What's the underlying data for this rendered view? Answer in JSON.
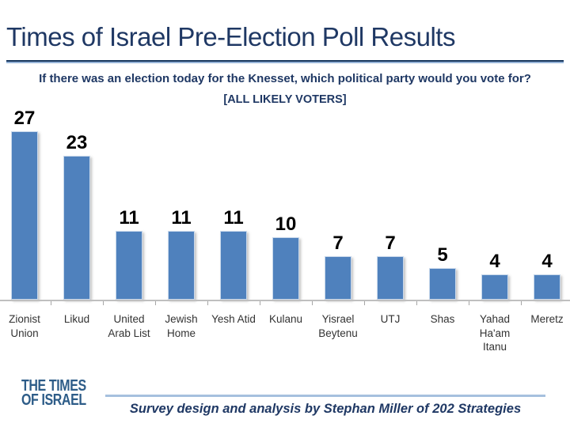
{
  "slide": {
    "title": "Times of Israel Pre-Election Poll Results",
    "subtitle": "If there was an election today for the Knesset, which political party would you vote for?",
    "audience_note": "[ALL LIKELY VOTERS]"
  },
  "chart_data": {
    "type": "bar",
    "title": "Times of Israel Pre-Election Poll Results",
    "categories": [
      "Zionist Union",
      "Likud",
      "United Arab List",
      "Jewish Home",
      "Yesh Atid",
      "Kulanu",
      "Yisrael Beytenu",
      "UTJ",
      "Shas",
      "Yahad Ha'am Itanu",
      "Meretz"
    ],
    "values": [
      27,
      23,
      11,
      11,
      11,
      10,
      7,
      7,
      5,
      4,
      4
    ],
    "data_labels": true,
    "y_axis_visible": false,
    "grid": false,
    "legend": false,
    "ylim": [
      0,
      28
    ],
    "bar_color": "#4f81bd"
  },
  "footer": {
    "logo": {
      "line1": "THE TIMES",
      "line2": "OF ISRAEL"
    },
    "credit": "Survey design and analysis by Stephan Miller of 202 Strategies"
  },
  "colors": {
    "navy": "#1f3864",
    "bar_fill": "#4f81bd",
    "bar_border": "#c9d9ec",
    "axis_line": "#bfbfbf",
    "tick": "#a6a6a6",
    "logo_blue": "#2d5c88",
    "footer_rule": "#a6c0de",
    "value_label": "#000000",
    "category_label": "#333333"
  }
}
